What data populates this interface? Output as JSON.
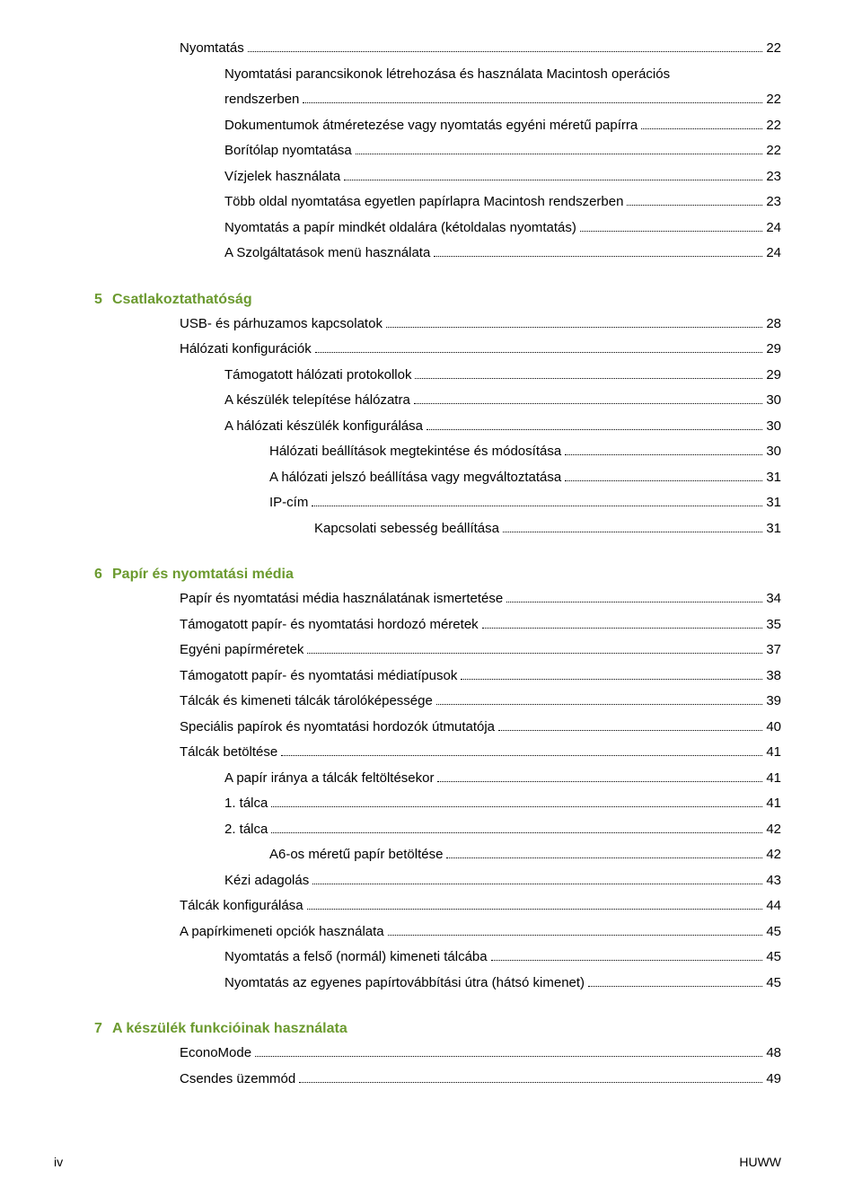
{
  "colors": {
    "chapter_accent": "#6b9a2f",
    "text": "#000000",
    "background": "#ffffff"
  },
  "typography": {
    "body_font": "Arial",
    "body_size_pt": 11,
    "chapter_size_pt": 12,
    "chapter_weight": "bold"
  },
  "continuation": [
    {
      "label": "Nyomtatás",
      "page": "22",
      "indent": 3
    },
    {
      "label": "Nyomtatási parancsikonok létrehozása és használata Macintosh operációs rendszerben",
      "page": "22",
      "indent": 4,
      "wrap": true
    },
    {
      "label": "Dokumentumok átméretezése vagy nyomtatás egyéni méretű papírra",
      "page": "22",
      "indent": 4
    },
    {
      "label": "Borítólap nyomtatása",
      "page": "22",
      "indent": 4
    },
    {
      "label": "Vízjelek használata",
      "page": "23",
      "indent": 4
    },
    {
      "label": "Több oldal nyomtatása egyetlen papírlapra Macintosh rendszerben",
      "page": "23",
      "indent": 4
    },
    {
      "label": "Nyomtatás a papír mindkét oldalára (kétoldalas nyomtatás)",
      "page": "24",
      "indent": 4
    },
    {
      "label": "A Szolgáltatások menü használata",
      "page": "24",
      "indent": 4
    }
  ],
  "chapters": [
    {
      "num": "5",
      "title": "Csatlakoztathatóság",
      "entries": [
        {
          "label": "USB- és párhuzamos kapcsolatok",
          "page": "28",
          "indent": 3
        },
        {
          "label": "Hálózati konfigurációk",
          "page": "29",
          "indent": 3
        },
        {
          "label": "Támogatott hálózati protokollok",
          "page": "29",
          "indent": 4
        },
        {
          "label": "A készülék telepítése hálózatra",
          "page": "30",
          "indent": 4
        },
        {
          "label": "A hálózati készülék konfigurálása",
          "page": "30",
          "indent": 4
        },
        {
          "label": "Hálózati beállítások megtekintése és módosítása",
          "page": "30",
          "indent": 5
        },
        {
          "label": "A hálózati jelszó beállítása vagy megváltoztatása",
          "page": "31",
          "indent": 5
        },
        {
          "label": "IP-cím",
          "page": "31",
          "indent": 5
        },
        {
          "label": "Kapcsolati sebesség beállítása",
          "page": "31",
          "indent": 6
        }
      ]
    },
    {
      "num": "6",
      "title": "Papír és nyomtatási média",
      "entries": [
        {
          "label": "Papír és nyomtatási média használatának ismertetése",
          "page": "34",
          "indent": 3
        },
        {
          "label": "Támogatott papír- és nyomtatási hordozó méretek",
          "page": "35",
          "indent": 3
        },
        {
          "label": "Egyéni papírméretek",
          "page": "37",
          "indent": 3
        },
        {
          "label": "Támogatott papír- és nyomtatási médiatípusok",
          "page": "38",
          "indent": 3
        },
        {
          "label": "Tálcák és kimeneti tálcák tárolóképessége",
          "page": "39",
          "indent": 3
        },
        {
          "label": "Speciális papírok és nyomtatási hordozók útmutatója",
          "page": "40",
          "indent": 3
        },
        {
          "label": "Tálcák betöltése",
          "page": "41",
          "indent": 3
        },
        {
          "label": "A papír iránya a tálcák feltöltésekor",
          "page": "41",
          "indent": 4
        },
        {
          "label": "1. tálca",
          "page": "41",
          "indent": 4
        },
        {
          "label": "2. tálca",
          "page": "42",
          "indent": 4
        },
        {
          "label": "A6-os méretű papír betöltése",
          "page": "42",
          "indent": 5
        },
        {
          "label": "Kézi adagolás",
          "page": "43",
          "indent": 4
        },
        {
          "label": "Tálcák konfigurálása",
          "page": "44",
          "indent": 3
        },
        {
          "label": "A papírkimeneti opciók használata",
          "page": "45",
          "indent": 3
        },
        {
          "label": "Nyomtatás a felső (normál) kimeneti tálcába",
          "page": "45",
          "indent": 4
        },
        {
          "label": "Nyomtatás az egyenes papírtovábbítási útra (hátsó kimenet)",
          "page": "45",
          "indent": 4
        }
      ]
    },
    {
      "num": "7",
      "title": "A készülék funkcióinak használata",
      "entries": [
        {
          "label": "EconoMode",
          "page": "48",
          "indent": 3
        },
        {
          "label": "Csendes üzemmód",
          "page": "49",
          "indent": 3
        }
      ]
    }
  ],
  "footer": {
    "left": "iv",
    "right": "HUWW"
  }
}
